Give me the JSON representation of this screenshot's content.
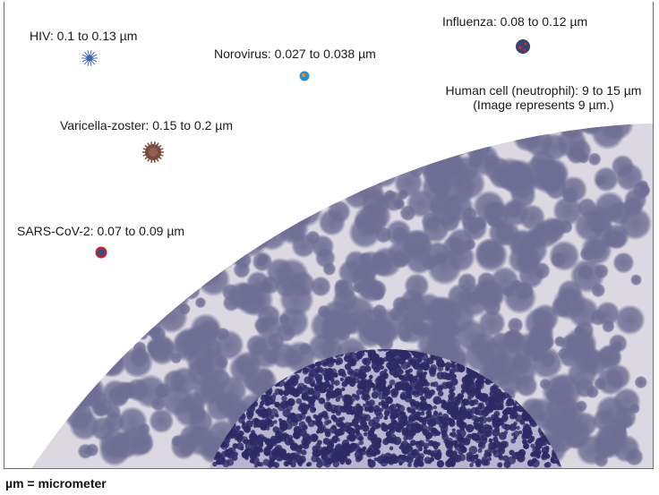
{
  "labels": {
    "hiv": "HIV: 0.1 to 0.13 µm",
    "norovirus": "Norovirus: 0.027 to 0.038 µm",
    "influenza": "Influenza: 0.08 to 0.12 µm",
    "varicella": "Varicella-zoster: 0.15 to 0.2 µm",
    "sars": "SARS-CoV-2: 0.07 to 0.09 µm",
    "cell_line1": "Human cell (neutrophil): 9 to 15 µm",
    "cell_line2": "(Image represents 9 µm.)"
  },
  "footer": "µm = micrometer",
  "colors": {
    "cytoplasm": "#dcd8e2",
    "granule": "#6e6e94",
    "nucleus": "#2e2a66",
    "hiv": "#3f64b0",
    "norovirus": "#2d8fc4",
    "influenza": "#33456e",
    "varicella": "#7a4a3c",
    "sars": "#b8282f"
  }
}
